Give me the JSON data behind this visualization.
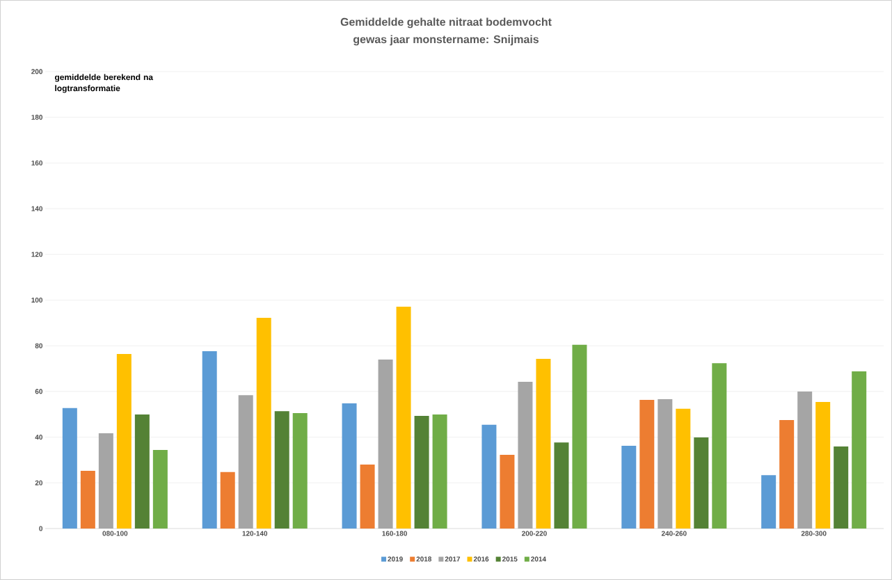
{
  "chart_data": {
    "type": "bar",
    "title": "Gemiddelde gehalte nitraat bodemvocht",
    "subtitle": "gewas jaar monstername: Snijmais",
    "annotations": [
      "gemiddelde berekend na logtransformatie"
    ],
    "categories": [
      "080-100",
      "120-140",
      "160-180",
      "200-220",
      "240-260",
      "280-300"
    ],
    "series": [
      {
        "name": "2019",
        "color": "#5b9bd5",
        "values": [
          52.7,
          77.6,
          54.8,
          45.4,
          36.2,
          23.4
        ]
      },
      {
        "name": "2018",
        "color": "#ed7d31",
        "values": [
          25.3,
          24.7,
          28.0,
          32.3,
          56.3,
          47.5
        ]
      },
      {
        "name": "2017",
        "color": "#a5a5a5",
        "values": [
          41.7,
          58.4,
          74.0,
          64.2,
          56.6,
          60.0
        ]
      },
      {
        "name": "2016",
        "color": "#ffc000",
        "values": [
          76.4,
          92.2,
          97.1,
          74.3,
          52.4,
          55.4
        ]
      },
      {
        "name": "2015",
        "color": "#548235",
        "values": [
          49.9,
          51.4,
          49.3,
          37.7,
          39.9,
          35.9
        ]
      },
      {
        "name": "2014",
        "color": "#70ad47",
        "values": [
          34.4,
          50.5,
          49.9,
          80.4,
          72.4,
          68.8
        ]
      }
    ],
    "ylim": [
      0,
      200
    ],
    "yticks": [
      0,
      20,
      40,
      60,
      80,
      100,
      120,
      140,
      160,
      180,
      200
    ],
    "grid": "y",
    "legend": "bottom"
  }
}
